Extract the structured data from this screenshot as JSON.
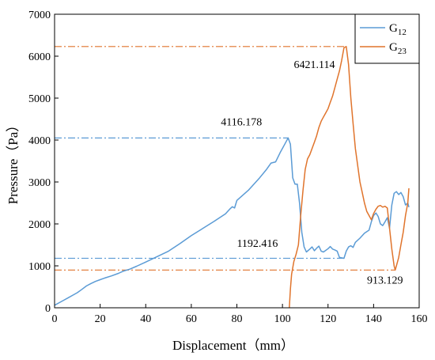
{
  "chart_data": {
    "type": "line",
    "title": "",
    "xlabel": "Displacement（mm）",
    "ylabel": "Pressure（Pa）",
    "xlim": [
      0,
      160
    ],
    "ylim": [
      0,
      7000
    ],
    "xticks": [
      0,
      20,
      40,
      60,
      80,
      100,
      120,
      140,
      160
    ],
    "yticks": [
      0,
      1000,
      2000,
      3000,
      4000,
      5000,
      6000,
      7000
    ],
    "grid": false,
    "legend_position": "top-right",
    "series": [
      {
        "name": "G",
        "subscript": "12",
        "color": "#5b9bd5",
        "points": [
          [
            0,
            60
          ],
          [
            2,
            120
          ],
          [
            4,
            180
          ],
          [
            6,
            240
          ],
          [
            8,
            300
          ],
          [
            10,
            360
          ],
          [
            12,
            440
          ],
          [
            14,
            520
          ],
          [
            16,
            580
          ],
          [
            18,
            630
          ],
          [
            20,
            670
          ],
          [
            22,
            710
          ],
          [
            25,
            760
          ],
          [
            28,
            820
          ],
          [
            30,
            870
          ],
          [
            33,
            920
          ],
          [
            36,
            990
          ],
          [
            40,
            1090
          ],
          [
            45,
            1220
          ],
          [
            50,
            1350
          ],
          [
            55,
            1530
          ],
          [
            60,
            1720
          ],
          [
            65,
            1890
          ],
          [
            70,
            2060
          ],
          [
            75,
            2240
          ],
          [
            77,
            2360
          ],
          [
            78,
            2410
          ],
          [
            79,
            2380
          ],
          [
            80,
            2560
          ],
          [
            85,
            2800
          ],
          [
            90,
            3100
          ],
          [
            93,
            3300
          ],
          [
            95,
            3450
          ],
          [
            97,
            3480
          ],
          [
            99,
            3700
          ],
          [
            101,
            3900
          ],
          [
            102.5,
            4050
          ],
          [
            103.5,
            3900
          ],
          [
            104.5,
            3100
          ],
          [
            105.5,
            2950
          ],
          [
            106.5,
            2950
          ],
          [
            107.5,
            2500
          ],
          [
            108.5,
            1800
          ],
          [
            109.5,
            1450
          ],
          [
            110.5,
            1330
          ],
          [
            112,
            1400
          ],
          [
            113,
            1450
          ],
          [
            114,
            1360
          ],
          [
            115,
            1420
          ],
          [
            116,
            1470
          ],
          [
            117,
            1350
          ],
          [
            118,
            1330
          ],
          [
            120,
            1410
          ],
          [
            121,
            1460
          ],
          [
            122,
            1400
          ],
          [
            123,
            1380
          ],
          [
            124,
            1350
          ],
          [
            125,
            1200
          ],
          [
            126,
            1190
          ],
          [
            127,
            1180
          ],
          [
            128,
            1350
          ],
          [
            129,
            1450
          ],
          [
            130,
            1480
          ],
          [
            131,
            1440
          ],
          [
            132,
            1560
          ],
          [
            134,
            1660
          ],
          [
            136,
            1780
          ],
          [
            138,
            1850
          ],
          [
            139,
            2050
          ],
          [
            140,
            2200
          ],
          [
            141,
            2260
          ],
          [
            142,
            2180
          ],
          [
            143,
            2000
          ],
          [
            144,
            1960
          ],
          [
            145,
            2050
          ],
          [
            146,
            2150
          ],
          [
            147,
            1900
          ],
          [
            148,
            2450
          ],
          [
            149,
            2730
          ],
          [
            150,
            2770
          ],
          [
            151,
            2700
          ],
          [
            152,
            2750
          ],
          [
            153,
            2650
          ],
          [
            154,
            2450
          ],
          [
            155,
            2500
          ],
          [
            155.5,
            2400
          ]
        ]
      },
      {
        "name": "G",
        "subscript": "23",
        "color": "#e0742c",
        "points": [
          [
            103,
            0
          ],
          [
            103.5,
            450
          ],
          [
            104,
            800
          ],
          [
            105,
            1100
          ],
          [
            106,
            1280
          ],
          [
            107,
            1500
          ],
          [
            108,
            2200
          ],
          [
            109,
            2800
          ],
          [
            110,
            3300
          ],
          [
            111,
            3550
          ],
          [
            112,
            3650
          ],
          [
            113,
            3800
          ],
          [
            114,
            3950
          ],
          [
            115,
            4100
          ],
          [
            116,
            4300
          ],
          [
            117,
            4450
          ],
          [
            118,
            4550
          ],
          [
            119,
            4650
          ],
          [
            120,
            4750
          ],
          [
            121,
            4900
          ],
          [
            122,
            5050
          ],
          [
            123,
            5250
          ],
          [
            124,
            5450
          ],
          [
            125,
            5650
          ],
          [
            126,
            5900
          ],
          [
            127,
            6200
          ],
          [
            128,
            6230
          ],
          [
            129,
            5800
          ],
          [
            130,
            5000
          ],
          [
            131,
            4400
          ],
          [
            132,
            3800
          ],
          [
            133,
            3400
          ],
          [
            134,
            3000
          ],
          [
            135,
            2750
          ],
          [
            136,
            2500
          ],
          [
            137,
            2300
          ],
          [
            138,
            2200
          ],
          [
            139,
            2100
          ],
          [
            140,
            2250
          ],
          [
            141,
            2350
          ],
          [
            142,
            2420
          ],
          [
            143,
            2440
          ],
          [
            144,
            2400
          ],
          [
            145,
            2420
          ],
          [
            146,
            2380
          ],
          [
            147,
            1900
          ],
          [
            148,
            1400
          ],
          [
            149,
            1000
          ],
          [
            149.5,
            900
          ],
          [
            150,
            1000
          ],
          [
            151,
            1200
          ],
          [
            152,
            1500
          ],
          [
            153,
            1800
          ],
          [
            154,
            2200
          ],
          [
            155,
            2500
          ],
          [
            155.5,
            2850
          ]
        ]
      }
    ],
    "reference_lines": [
      {
        "series": 0,
        "y": 4050,
        "x_end": 102.5
      },
      {
        "series": 0,
        "y": 1180,
        "x_end": 127
      },
      {
        "series": 1,
        "y": 6230,
        "x_end": 128
      },
      {
        "series": 1,
        "y": 900,
        "x_end": 149.5
      }
    ],
    "annotations": [
      {
        "text": "4116.178",
        "x": 82,
        "y": 4350
      },
      {
        "text": "1192.416",
        "x": 89,
        "y": 1450
      },
      {
        "text": "6421.114",
        "x": 114,
        "y": 5720
      },
      {
        "text": "913.129",
        "x": 145,
        "y": 580
      }
    ]
  }
}
